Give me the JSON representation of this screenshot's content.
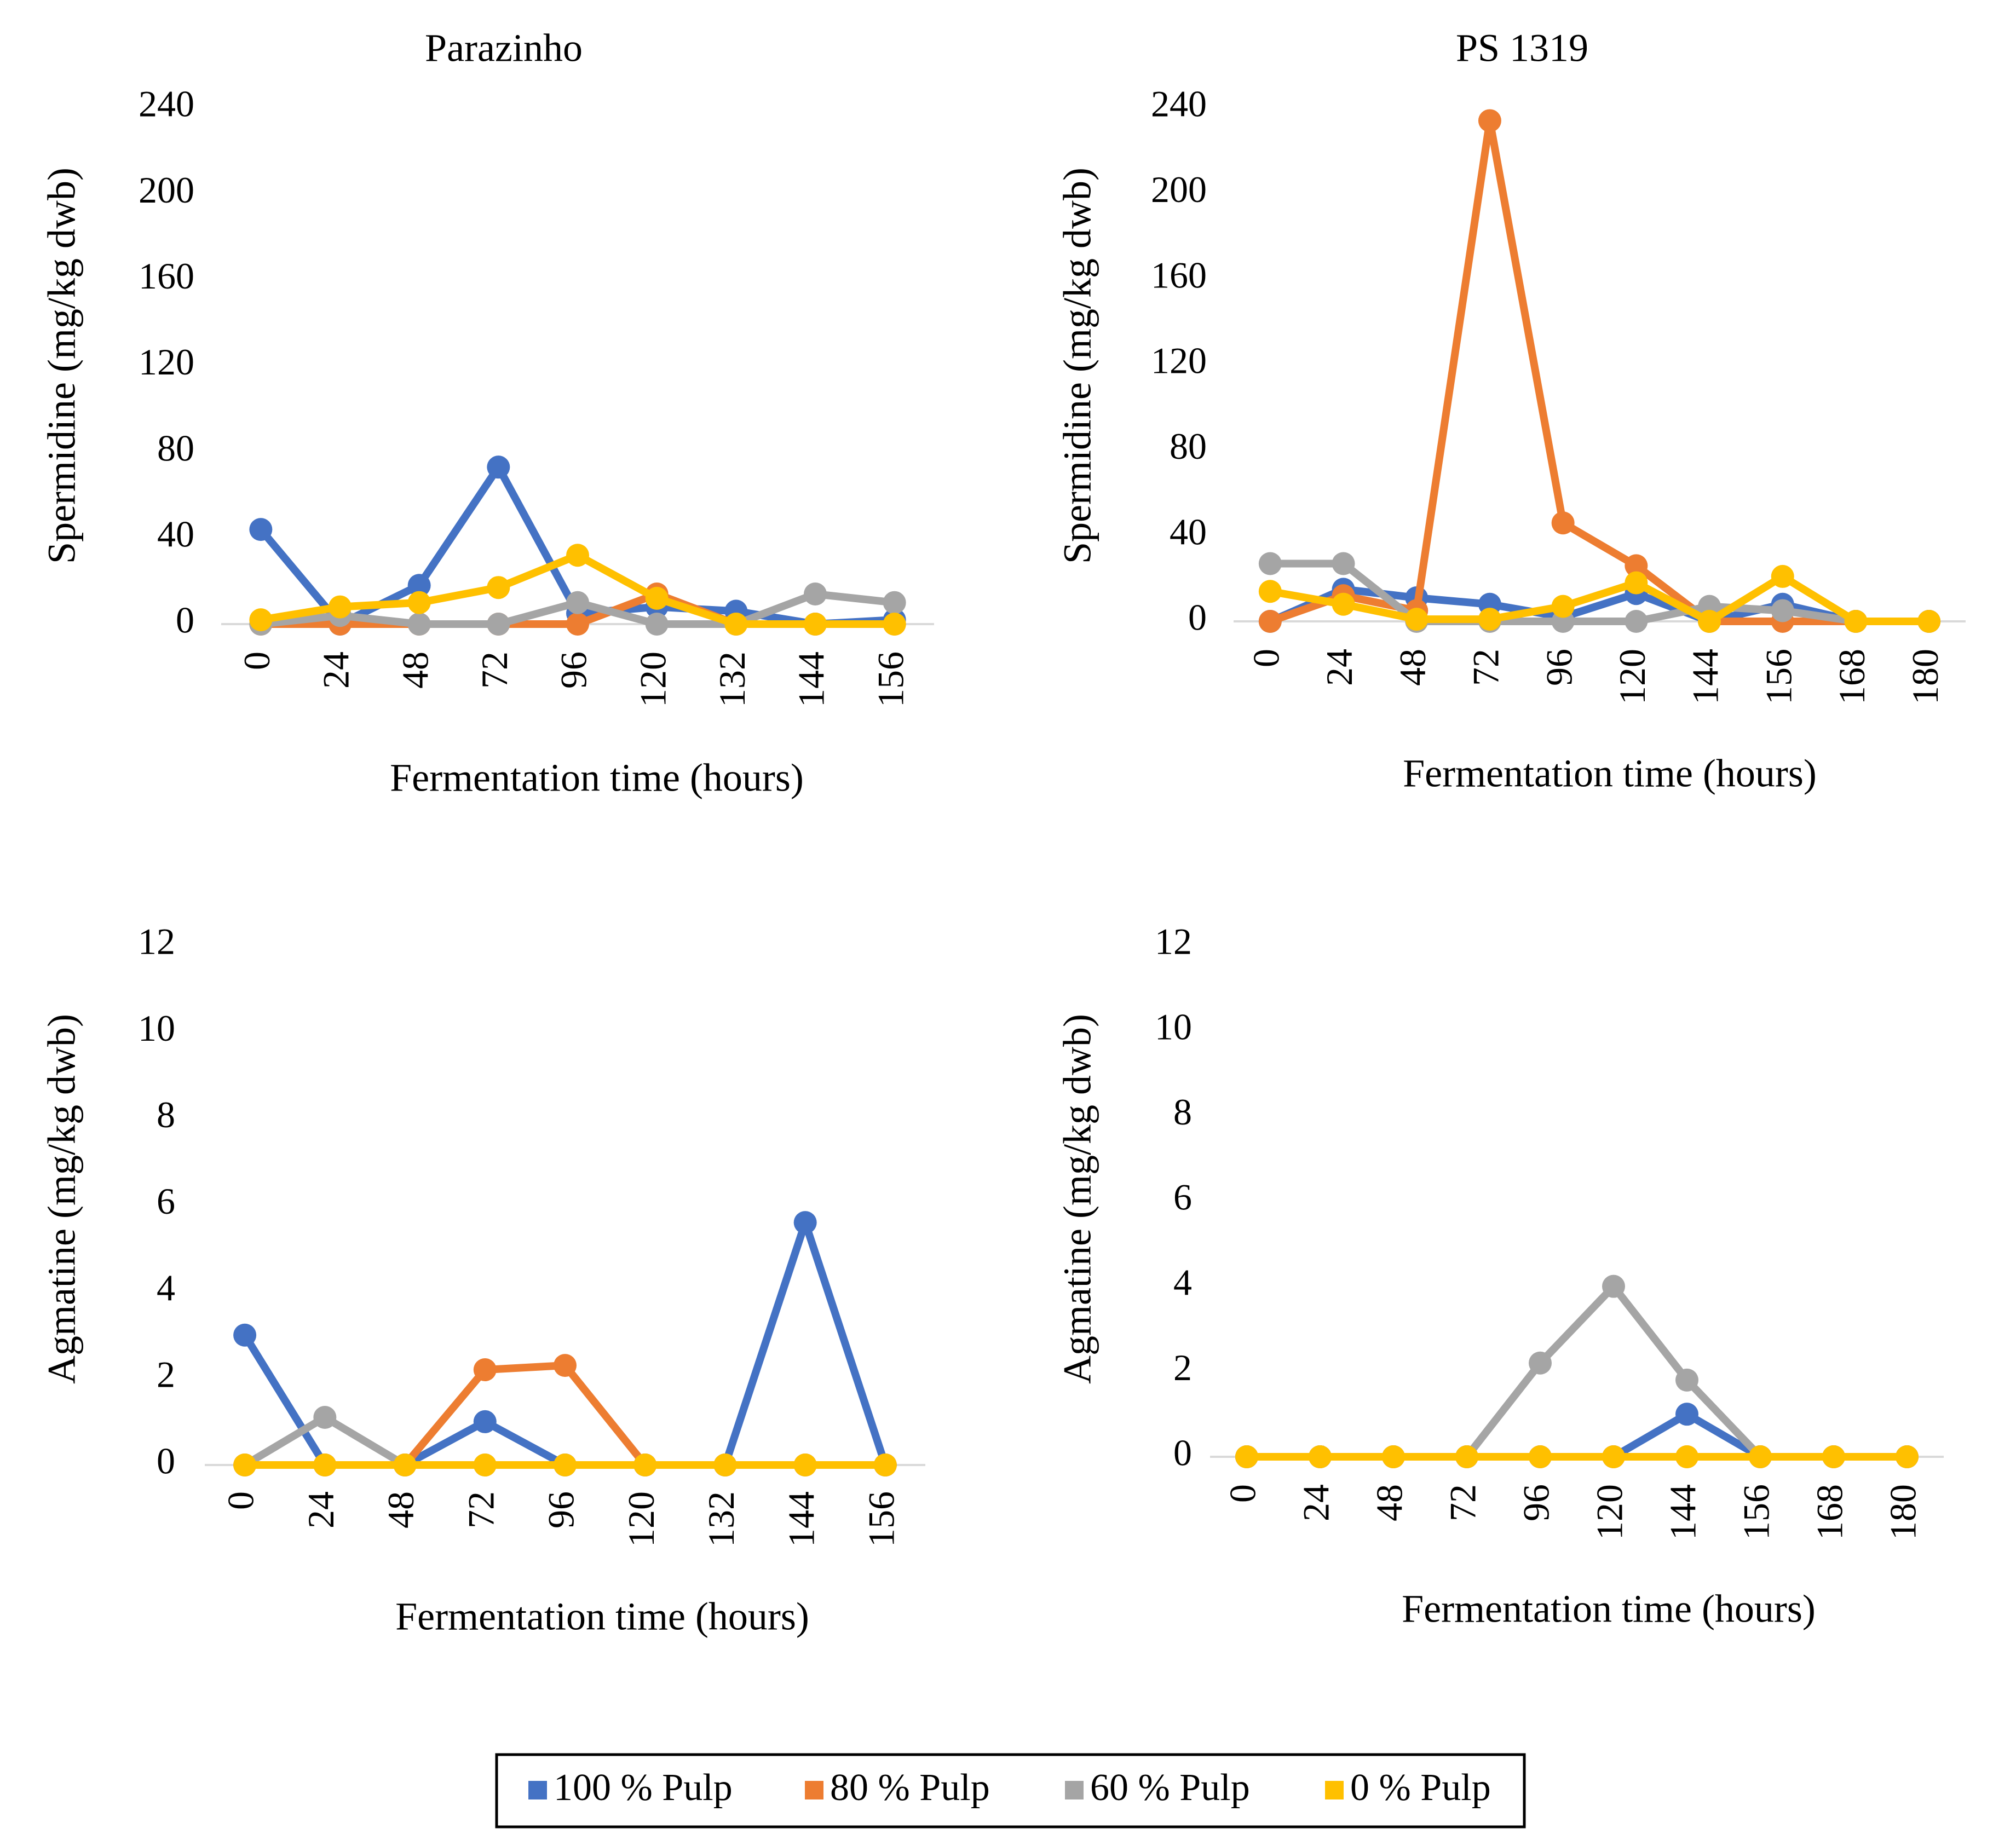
{
  "colors": {
    "100 % Pulp": "#4472C4",
    "80 % Pulp": "#ED7D31",
    "60 % Pulp": "#A5A5A5",
    "0 % Pulp": "#FFC000",
    "axis": "#D9D9D9"
  },
  "legend": {
    "items": [
      "100 % Pulp",
      "80 % Pulp",
      "60 % Pulp",
      "0 % Pulp"
    ],
    "position": "bottom-center",
    "border": true
  },
  "chart_data": [
    {
      "type": "line",
      "title": "Parazinho",
      "xlabel": "Fermentation time (hours)",
      "ylabel": "Spermidine (mg/kg dwb)",
      "categories": [
        "0",
        "24",
        "48",
        "72",
        "96",
        "120",
        "132",
        "144",
        "156"
      ],
      "ylim": [
        0,
        240
      ],
      "yticks": [
        "0",
        "40",
        "80",
        "120",
        "160",
        "200",
        "240"
      ],
      "grid": false,
      "series": [
        {
          "name": "100 % Pulp",
          "values": [
            44,
            0,
            18,
            73,
            5,
            8,
            6,
            0,
            2
          ]
        },
        {
          "name": "80 % Pulp",
          "values": [
            0,
            0,
            0,
            0,
            0,
            14,
            0,
            0,
            0
          ]
        },
        {
          "name": "60 % Pulp",
          "values": [
            0,
            4,
            0,
            0,
            10,
            0,
            0,
            14,
            10
          ]
        },
        {
          "name": "0 % Pulp",
          "values": [
            2,
            8,
            10,
            17,
            32,
            12,
            0,
            0,
            0
          ]
        }
      ]
    },
    {
      "type": "line",
      "title": "PS 1319",
      "xlabel": "Fermentation time (hours)",
      "ylabel": "Spermidine (mg/kg dwb)",
      "categories": [
        "0",
        "24",
        "48",
        "72",
        "96",
        "120",
        "144",
        "156",
        "168",
        "180"
      ],
      "ylim": [
        0,
        240
      ],
      "yticks": [
        "0",
        "40",
        "80",
        "120",
        "160",
        "200",
        "240"
      ],
      "grid": false,
      "series": [
        {
          "name": "100 % Pulp",
          "values": [
            0,
            15,
            11,
            8,
            2,
            13,
            0,
            8,
            0,
            0
          ]
        },
        {
          "name": "80 % Pulp",
          "values": [
            0,
            12,
            5,
            234,
            46,
            26,
            0,
            0,
            0,
            0
          ]
        },
        {
          "name": "60 % Pulp",
          "values": [
            27,
            27,
            0,
            0,
            0,
            0,
            7,
            5,
            0,
            0
          ]
        },
        {
          "name": "0 % Pulp",
          "values": [
            14,
            8,
            1,
            1,
            7,
            18,
            0,
            21,
            0,
            0
          ]
        }
      ]
    },
    {
      "type": "line",
      "title": "",
      "xlabel": "Fermentation time (hours)",
      "ylabel": "Agmatine (mg/kg dwb)",
      "categories": [
        "0",
        "24",
        "48",
        "72",
        "96",
        "120",
        "132",
        "144",
        "156"
      ],
      "ylim": [
        0,
        12
      ],
      "yticks": [
        "0",
        "2",
        "4",
        "6",
        "8",
        "10",
        "12"
      ],
      "grid": false,
      "series": [
        {
          "name": "100 % Pulp",
          "values": [
            3.0,
            0,
            0,
            1.0,
            0,
            0,
            0,
            5.6,
            0
          ]
        },
        {
          "name": "80 % Pulp",
          "values": [
            0,
            0,
            0,
            2.2,
            2.3,
            0,
            0,
            0,
            0
          ]
        },
        {
          "name": "60 % Pulp",
          "values": [
            0,
            1.1,
            0,
            0,
            0,
            0,
            0,
            0,
            0
          ]
        },
        {
          "name": "0 % Pulp",
          "values": [
            0,
            0,
            0,
            0,
            0,
            0,
            0,
            0,
            0
          ]
        }
      ]
    },
    {
      "type": "line",
      "title": "",
      "xlabel": "Fermentation time (hours)",
      "ylabel": "Agmatine (mg/kg dwb)",
      "categories": [
        "0",
        "24",
        "48",
        "72",
        "96",
        "120",
        "144",
        "156",
        "168",
        "180"
      ],
      "ylim": [
        0,
        12
      ],
      "yticks": [
        "0",
        "2",
        "4",
        "6",
        "8",
        "10",
        "12"
      ],
      "grid": false,
      "series": [
        {
          "name": "100 % Pulp",
          "values": [
            0,
            0,
            0,
            0,
            0,
            0,
            1.0,
            0,
            0,
            0
          ]
        },
        {
          "name": "80 % Pulp",
          "values": [
            0,
            0,
            0,
            0,
            0,
            0,
            0,
            0,
            0,
            0
          ]
        },
        {
          "name": "60 % Pulp",
          "values": [
            0,
            0,
            0,
            0,
            2.2,
            4.0,
            1.8,
            0,
            0,
            0
          ]
        },
        {
          "name": "0 % Pulp",
          "values": [
            0,
            0,
            0,
            0,
            0,
            0,
            0,
            0,
            0,
            0
          ]
        }
      ]
    }
  ]
}
